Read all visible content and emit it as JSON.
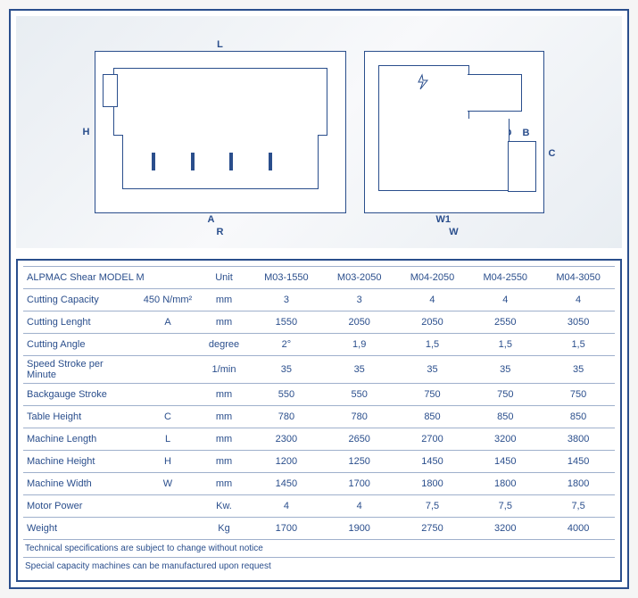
{
  "colors": {
    "primary": "#2a4e8c",
    "grid": "#9fb0cc",
    "bg_gradient_from": "#e8edf2",
    "bg_gradient_to": "#f8f9fb"
  },
  "diagram": {
    "dim_labels": {
      "L": "L",
      "H": "H",
      "A": "A",
      "R": "R",
      "W": "W",
      "W1": "W1",
      "D": "D",
      "B": "B",
      "C": "C"
    }
  },
  "table": {
    "title": "ALPMAC Shear MODEL M",
    "unit_header": "Unit",
    "model_headers": [
      "M03-1550",
      "M03-2050",
      "M04-2050",
      "M04-2550",
      "M04-3050"
    ],
    "rows": [
      {
        "label": "Cutting Capacity",
        "sym": "450 N/mm²",
        "unit": "mm",
        "vals": [
          "3",
          "3",
          "4",
          "4",
          "4"
        ]
      },
      {
        "label": "Cutting Lenght",
        "sym": "A",
        "unit": "mm",
        "vals": [
          "1550",
          "2050",
          "2050",
          "2550",
          "3050"
        ]
      },
      {
        "label": "Cutting Angle",
        "sym": "",
        "unit": "degree",
        "vals": [
          "2°",
          "1,9",
          "1,5",
          "1,5",
          "1,5"
        ]
      },
      {
        "label": "Speed Stroke per Minute",
        "sym": "",
        "unit": "1/min",
        "vals": [
          "35",
          "35",
          "35",
          "35",
          "35"
        ]
      },
      {
        "label": "Backgauge Stroke",
        "sym": "",
        "unit": "mm",
        "vals": [
          "550",
          "550",
          "750",
          "750",
          "750"
        ]
      },
      {
        "label": "Table Height",
        "sym": "C",
        "unit": "mm",
        "vals": [
          "780",
          "780",
          "850",
          "850",
          "850"
        ]
      },
      {
        "label": "Machine Length",
        "sym": "L",
        "unit": "mm",
        "vals": [
          "2300",
          "2650",
          "2700",
          "3200",
          "3800"
        ]
      },
      {
        "label": "Machine Height",
        "sym": "H",
        "unit": "mm",
        "vals": [
          "1200",
          "1250",
          "1450",
          "1450",
          "1450"
        ]
      },
      {
        "label": "Machine Width",
        "sym": "W",
        "unit": "mm",
        "vals": [
          "1450",
          "1700",
          "1800",
          "1800",
          "1800"
        ]
      },
      {
        "label": "Motor Power",
        "sym": "",
        "unit": "Kw.",
        "vals": [
          "4",
          "4",
          "7,5",
          "7,5",
          "7,5"
        ]
      },
      {
        "label": "Weight",
        "sym": "",
        "unit": "Kg",
        "vals": [
          "1700",
          "1900",
          "2750",
          "3200",
          "4000"
        ]
      }
    ],
    "footnotes": [
      "Technical specifications are subject to change without notice",
      "Special capacity machines can be manufactured upon request"
    ]
  }
}
